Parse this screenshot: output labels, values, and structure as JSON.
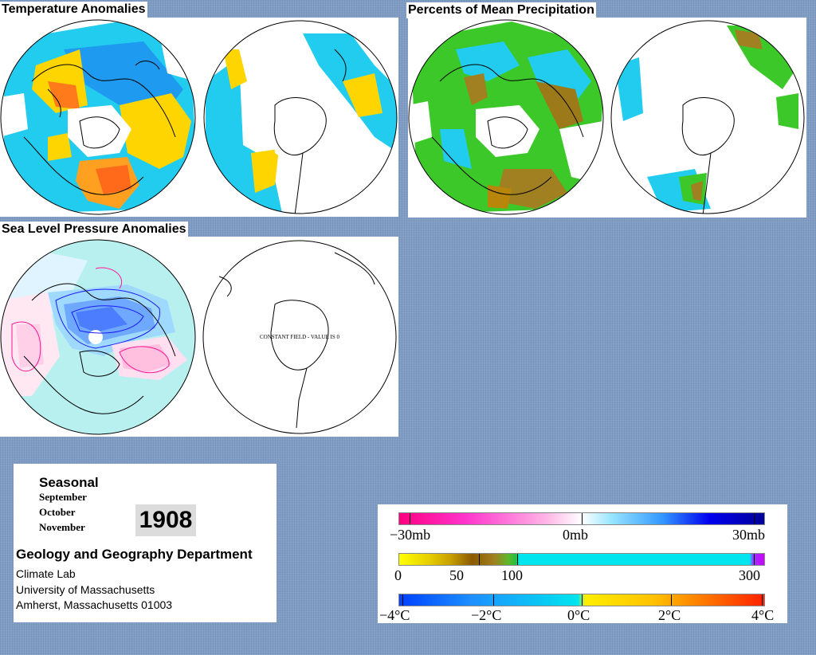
{
  "panels": {
    "temperature": {
      "title": "Temperature Anomalies"
    },
    "precipitation": {
      "title": "Percents of Mean Precipitation"
    },
    "pressure": {
      "title": "Sea Level Pressure Anomalies",
      "south_note": "CONSTANT FIELD - VALUE IS 0"
    }
  },
  "info": {
    "season": "Seasonal",
    "months": [
      "September",
      "October",
      "November"
    ],
    "year": "1908",
    "department": "Geology and Geography Department",
    "lines": [
      "Climate Lab",
      "University of Massachusetts",
      "Amherst, Massachusetts 01003"
    ]
  },
  "legends": {
    "pressure": {
      "labels": [
        "−30mb",
        "0mb",
        "30mb"
      ]
    },
    "precipitation": {
      "labels": [
        "0",
        "50",
        "100",
        "300"
      ]
    },
    "temperature": {
      "labels": [
        "−4°C",
        "−2°C",
        "0°C",
        "2°C",
        "4°C"
      ]
    }
  },
  "colors": {
    "cold": "#1e90ff",
    "cool": "#00e5ee",
    "warm": "#ffd700",
    "hot": "#ff4500",
    "dry": "#b8860b",
    "wet": "#32cd32",
    "pressure_low": "#1a1aff",
    "pressure_high": "#ff1493"
  }
}
